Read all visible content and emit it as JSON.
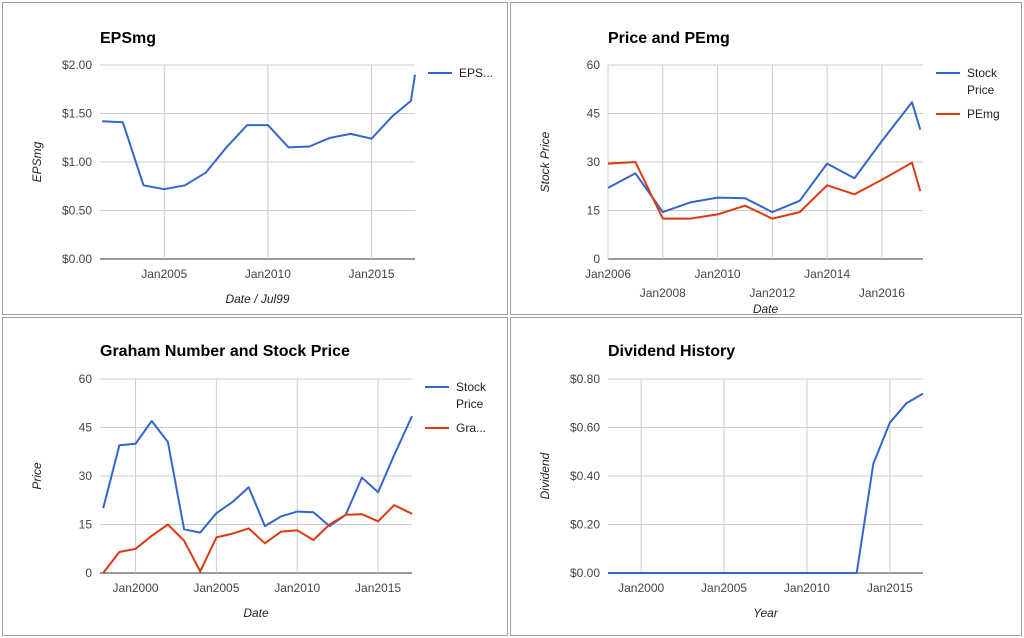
{
  "colors": {
    "blue": "#3366cc",
    "red": "#dc3912",
    "grid": "#cccccc",
    "axis": "#333333"
  },
  "chart_data": [
    {
      "id": "eps",
      "type": "line",
      "title": "EPSmg",
      "xlabel": "Date / Jul99",
      "ylabel": "EPSmg",
      "xlim": [
        2001.9,
        2017.1
      ],
      "ylim": [
        0,
        2
      ],
      "yticks": [
        0,
        0.5,
        1,
        1.5,
        2
      ],
      "ytick_labels": [
        "$0.00",
        "$0.50",
        "$1.00",
        "$1.50",
        "$2.00"
      ],
      "xticks": [
        {
          "v": 2005,
          "label": "Jan2005",
          "row": 0
        },
        {
          "v": 2010,
          "label": "Jan2010",
          "row": 0
        },
        {
          "v": 2015,
          "label": "Jan2015",
          "row": 0
        }
      ],
      "legend": "right",
      "grid": true,
      "series": [
        {
          "name": "EPS...",
          "color": "#3366cc",
          "x": [
            2002,
            2003,
            2004,
            2005,
            2006,
            2007,
            2008,
            2009,
            2010,
            2011,
            2012,
            2013,
            2014,
            2015,
            2016,
            2016.9,
            2017.1
          ],
          "y": [
            1.42,
            1.41,
            0.76,
            0.72,
            0.76,
            0.89,
            1.15,
            1.38,
            1.38,
            1.15,
            1.16,
            1.25,
            1.29,
            1.24,
            1.47,
            1.63,
            1.9
          ]
        }
      ]
    },
    {
      "id": "pe",
      "type": "line",
      "title": "Price and PEmg",
      "xlabel": "Date",
      "ylabel": "Stock Price",
      "xlim": [
        2006,
        2017.5
      ],
      "ylim": [
        0,
        60
      ],
      "yticks": [
        0,
        15,
        30,
        45,
        60
      ],
      "ytick_labels": [
        "0",
        "15",
        "30",
        "45",
        "60"
      ],
      "xticks": [
        {
          "v": 2006,
          "label": "Jan2006",
          "row": 0
        },
        {
          "v": 2008,
          "label": "Jan2008",
          "row": 1
        },
        {
          "v": 2010,
          "label": "Jan2010",
          "row": 0
        },
        {
          "v": 2012,
          "label": "Jan2012",
          "row": 1
        },
        {
          "v": 2014,
          "label": "Jan2014",
          "row": 0
        },
        {
          "v": 2016,
          "label": "Jan2016",
          "row": 1
        }
      ],
      "legend": "right",
      "grid": true,
      "series": [
        {
          "name": "Stock Price",
          "color": "#3366cc",
          "x": [
            2006,
            2007,
            2008,
            2009,
            2010,
            2011,
            2012,
            2013,
            2014,
            2015,
            2016,
            2017.1,
            2017.4
          ],
          "y": [
            22,
            26.5,
            14.5,
            17.5,
            19,
            18.8,
            14.5,
            18,
            29.5,
            25,
            36.5,
            48.5,
            40
          ]
        },
        {
          "name": "PEmg",
          "color": "#dc3912",
          "x": [
            2006,
            2007,
            2008,
            2009,
            2010,
            2011,
            2012,
            2013,
            2014,
            2015,
            2016,
            2017.1,
            2017.4
          ],
          "y": [
            29.5,
            30,
            12.5,
            12.5,
            13.8,
            16.5,
            12.5,
            14.5,
            22.8,
            20,
            24.5,
            29.8,
            21
          ]
        }
      ]
    },
    {
      "id": "graham",
      "type": "line",
      "title": "Graham Number and Stock Price",
      "xlabel": "Date",
      "ylabel": "Price",
      "xlim": [
        1997.8,
        2017.1
      ],
      "ylim": [
        0,
        60
      ],
      "yticks": [
        0,
        15,
        30,
        45,
        60
      ],
      "ytick_labels": [
        "0",
        "15",
        "30",
        "45",
        "60"
      ],
      "xticks": [
        {
          "v": 2000,
          "label": "Jan2000",
          "row": 0
        },
        {
          "v": 2005,
          "label": "Jan2005",
          "row": 0
        },
        {
          "v": 2010,
          "label": "Jan2010",
          "row": 0
        },
        {
          "v": 2015,
          "label": "Jan2015",
          "row": 0
        }
      ],
      "legend": "right",
      "grid": true,
      "series": [
        {
          "name": "Stock Price",
          "color": "#3366cc",
          "x": [
            1998,
            1999,
            2000,
            2001,
            2002,
            2003,
            2004,
            2005,
            2006,
            2007,
            2008,
            2009,
            2010,
            2011,
            2012,
            2013,
            2014,
            2015,
            2016,
            2017.1
          ],
          "y": [
            20,
            39.5,
            40,
            47,
            40.5,
            13.5,
            12.5,
            18.5,
            22,
            26.5,
            14.5,
            17.5,
            19,
            18.8,
            14.5,
            18,
            29.5,
            25,
            36.5,
            48.5
          ]
        },
        {
          "name": "Gra...",
          "color": "#dc3912",
          "x": [
            1998,
            1999,
            2000,
            2001,
            2002,
            2003,
            2004,
            2005,
            2006,
            2007,
            2008,
            2009,
            2010,
            2011,
            2012,
            2013,
            2014,
            2015,
            2016,
            2017.1
          ],
          "y": [
            0,
            6.5,
            7.5,
            11.5,
            15,
            10,
            0.5,
            11,
            12.2,
            13.8,
            9.2,
            12.8,
            13.2,
            10.2,
            15,
            18,
            18.2,
            16,
            21,
            18.3
          ]
        }
      ]
    },
    {
      "id": "div",
      "type": "line",
      "title": "Dividend History",
      "xlabel": "Year",
      "ylabel": "Dividend",
      "xlim": [
        1998,
        2017
      ],
      "ylim": [
        0,
        0.8
      ],
      "yticks": [
        0,
        0.2,
        0.4,
        0.6,
        0.8
      ],
      "ytick_labels": [
        "$0.00",
        "$0.20",
        "$0.40",
        "$0.60",
        "$0.80"
      ],
      "xticks": [
        {
          "v": 2000,
          "label": "Jan2000",
          "row": 0
        },
        {
          "v": 2005,
          "label": "Jan2005",
          "row": 0
        },
        {
          "v": 2010,
          "label": "Jan2010",
          "row": 0
        },
        {
          "v": 2015,
          "label": "Jan2015",
          "row": 0
        }
      ],
      "legend": "none",
      "grid": true,
      "series": [
        {
          "name": "",
          "color": "#3366cc",
          "x": [
            1998,
            2013,
            2014,
            2015,
            2016,
            2017
          ],
          "y": [
            0,
            0,
            0.45,
            0.62,
            0.7,
            0.74
          ]
        }
      ]
    }
  ]
}
